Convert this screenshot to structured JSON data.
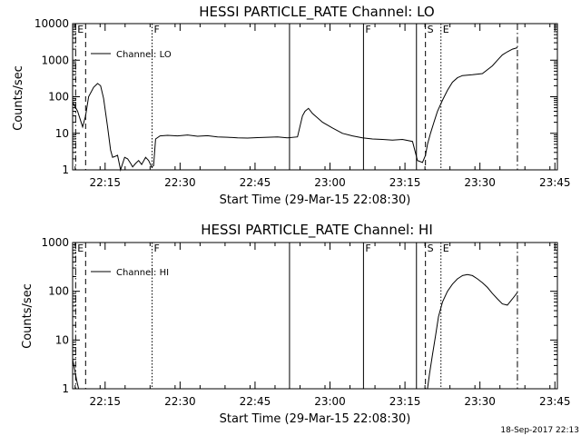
{
  "chart_data": [
    {
      "type": "line",
      "title": "HESSI PARTICLE_RATE Channel: LO",
      "xlabel": "Start Time (29-Mar-15 22:08:30)",
      "ylabel": "Counts/sec",
      "yscale": "log",
      "ylim": [
        1,
        10000
      ],
      "xlim_minutes": [
        0,
        97
      ],
      "x_tick_labels": [
        "22:15",
        "22:30",
        "22:45",
        "23:00",
        "23:15",
        "23:30",
        "23:45"
      ],
      "x_tick_minutes": [
        6.5,
        21.5,
        36.5,
        51.5,
        66.5,
        81.5,
        96.5
      ],
      "y_tick_labels": [
        "1",
        "10",
        "100",
        "1000",
        "10000"
      ],
      "y_tick_values": [
        1,
        10,
        100,
        1000,
        10000
      ],
      "legend": {
        "label": "Channel: LO",
        "placement": "top-left"
      },
      "markers": [
        {
          "label": "E",
          "minute": 0.6,
          "style": "dashdot"
        },
        {
          "label": "",
          "minute": 2.6,
          "style": "dashed"
        },
        {
          "label": "F",
          "minute": 15.9,
          "style": "dotted"
        },
        {
          "label": "",
          "minute": 43.4,
          "style": "solid"
        },
        {
          "label": "F",
          "minute": 58.2,
          "style": "solid"
        },
        {
          "label": "",
          "minute": 68.8,
          "style": "solid"
        },
        {
          "label": "S",
          "minute": 70.6,
          "style": "dashed"
        },
        {
          "label": "E",
          "minute": 73.7,
          "style": "dotted"
        },
        {
          "label": "",
          "minute": 89.0,
          "style": "dashdot"
        }
      ],
      "series": [
        {
          "x": [
            0.0,
            1.0,
            2.0,
            2.6,
            3.2,
            4.2,
            5.0,
            5.6,
            6.2,
            7.0,
            7.6,
            8.0,
            8.4,
            9.0,
            9.6,
            10.4,
            11.0,
            11.6,
            12.0,
            12.6,
            13.2,
            13.8,
            14.6,
            15.2,
            15.8,
            16.2,
            16.6,
            17.5,
            19.0,
            21.0,
            23.0,
            25.0,
            27.0,
            29.0,
            31.0,
            33.0,
            35.0,
            37.0,
            39.0,
            41.0,
            43.0,
            45.0,
            46.0,
            46.5,
            47.2,
            48.0,
            50.0,
            52.0,
            54.0,
            56.0,
            58.0,
            60.0,
            62.0,
            64.0,
            66.0,
            68.0,
            69.0,
            70.0,
            70.6,
            71.0,
            71.6,
            72.3,
            73.0,
            74.0,
            75.0,
            76.0,
            77.0,
            78.0,
            80.0,
            82.0,
            84.0,
            85.0,
            86.0,
            87.0,
            88.0,
            89.0
          ],
          "values": [
            70,
            40,
            15,
            30,
            100,
            180,
            230,
            200,
            90,
            15,
            3.5,
            2.2,
            2.3,
            2.5,
            1.0,
            2.2,
            2.0,
            1.5,
            1.2,
            1.5,
            1.8,
            1.4,
            2.2,
            1.8,
            1.2,
            1.3,
            7.0,
            8.5,
            8.8,
            8.5,
            9.0,
            8.3,
            8.6,
            8.0,
            7.8,
            7.5,
            7.4,
            7.6,
            7.8,
            8.0,
            7.5,
            8.0,
            30,
            40,
            48,
            35,
            20,
            14,
            10,
            8.5,
            7.5,
            7.0,
            6.8,
            6.5,
            6.8,
            6.0,
            1.8,
            1.6,
            2.5,
            5.0,
            10,
            20,
            40,
            80,
            150,
            250,
            330,
            380,
            400,
            430,
            700,
            1000,
            1400,
            1700,
            2000,
            2200
          ]
        }
      ]
    },
    {
      "type": "line",
      "title": "HESSI PARTICLE_RATE Channel: HI",
      "xlabel": "Start Time (29-Mar-15 22:08:30)",
      "ylabel": "Counts/sec",
      "yscale": "log",
      "ylim": [
        1,
        1000
      ],
      "xlim_minutes": [
        0,
        97
      ],
      "x_tick_labels": [
        "22:15",
        "22:30",
        "22:45",
        "23:00",
        "23:15",
        "23:30",
        "23:45"
      ],
      "x_tick_minutes": [
        6.5,
        21.5,
        36.5,
        51.5,
        66.5,
        81.5,
        96.5
      ],
      "y_tick_labels": [
        "1",
        "10",
        "100",
        "1000"
      ],
      "y_tick_values": [
        1,
        10,
        100,
        1000
      ],
      "legend": {
        "label": "Channel: HI",
        "placement": "top-left"
      },
      "markers": [
        {
          "label": "E",
          "minute": 0.6,
          "style": "dashdot"
        },
        {
          "label": "",
          "minute": 2.6,
          "style": "dashed"
        },
        {
          "label": "F",
          "minute": 15.9,
          "style": "dotted"
        },
        {
          "label": "",
          "minute": 43.4,
          "style": "solid"
        },
        {
          "label": "F",
          "minute": 58.2,
          "style": "solid"
        },
        {
          "label": "",
          "minute": 68.8,
          "style": "solid"
        },
        {
          "label": "S",
          "minute": 70.6,
          "style": "dashed"
        },
        {
          "label": "E",
          "minute": 73.7,
          "style": "dotted"
        },
        {
          "label": "",
          "minute": 89.0,
          "style": "dashdot"
        }
      ],
      "series": [
        {
          "x": [
            0.0,
            0.4,
            0.8,
            1.2
          ],
          "values": [
            4,
            2.5,
            1.5,
            1.0
          ]
        },
        {
          "x": [
            71.0,
            71.4,
            72.0,
            72.6,
            73.2,
            74.0,
            75.0,
            76.0,
            77.0,
            78.0,
            79.0,
            80.0,
            81.0,
            82.0,
            83.0,
            84.0,
            85.0,
            86.0,
            87.0,
            88.0,
            89.0
          ],
          "values": [
            1.0,
            2.0,
            5.0,
            12,
            30,
            60,
            100,
            140,
            180,
            210,
            220,
            210,
            180,
            150,
            120,
            90,
            70,
            55,
            52,
            70,
            95
          ]
        }
      ]
    }
  ],
  "footer": {
    "timestamp": "18-Sep-2017 22:13"
  }
}
